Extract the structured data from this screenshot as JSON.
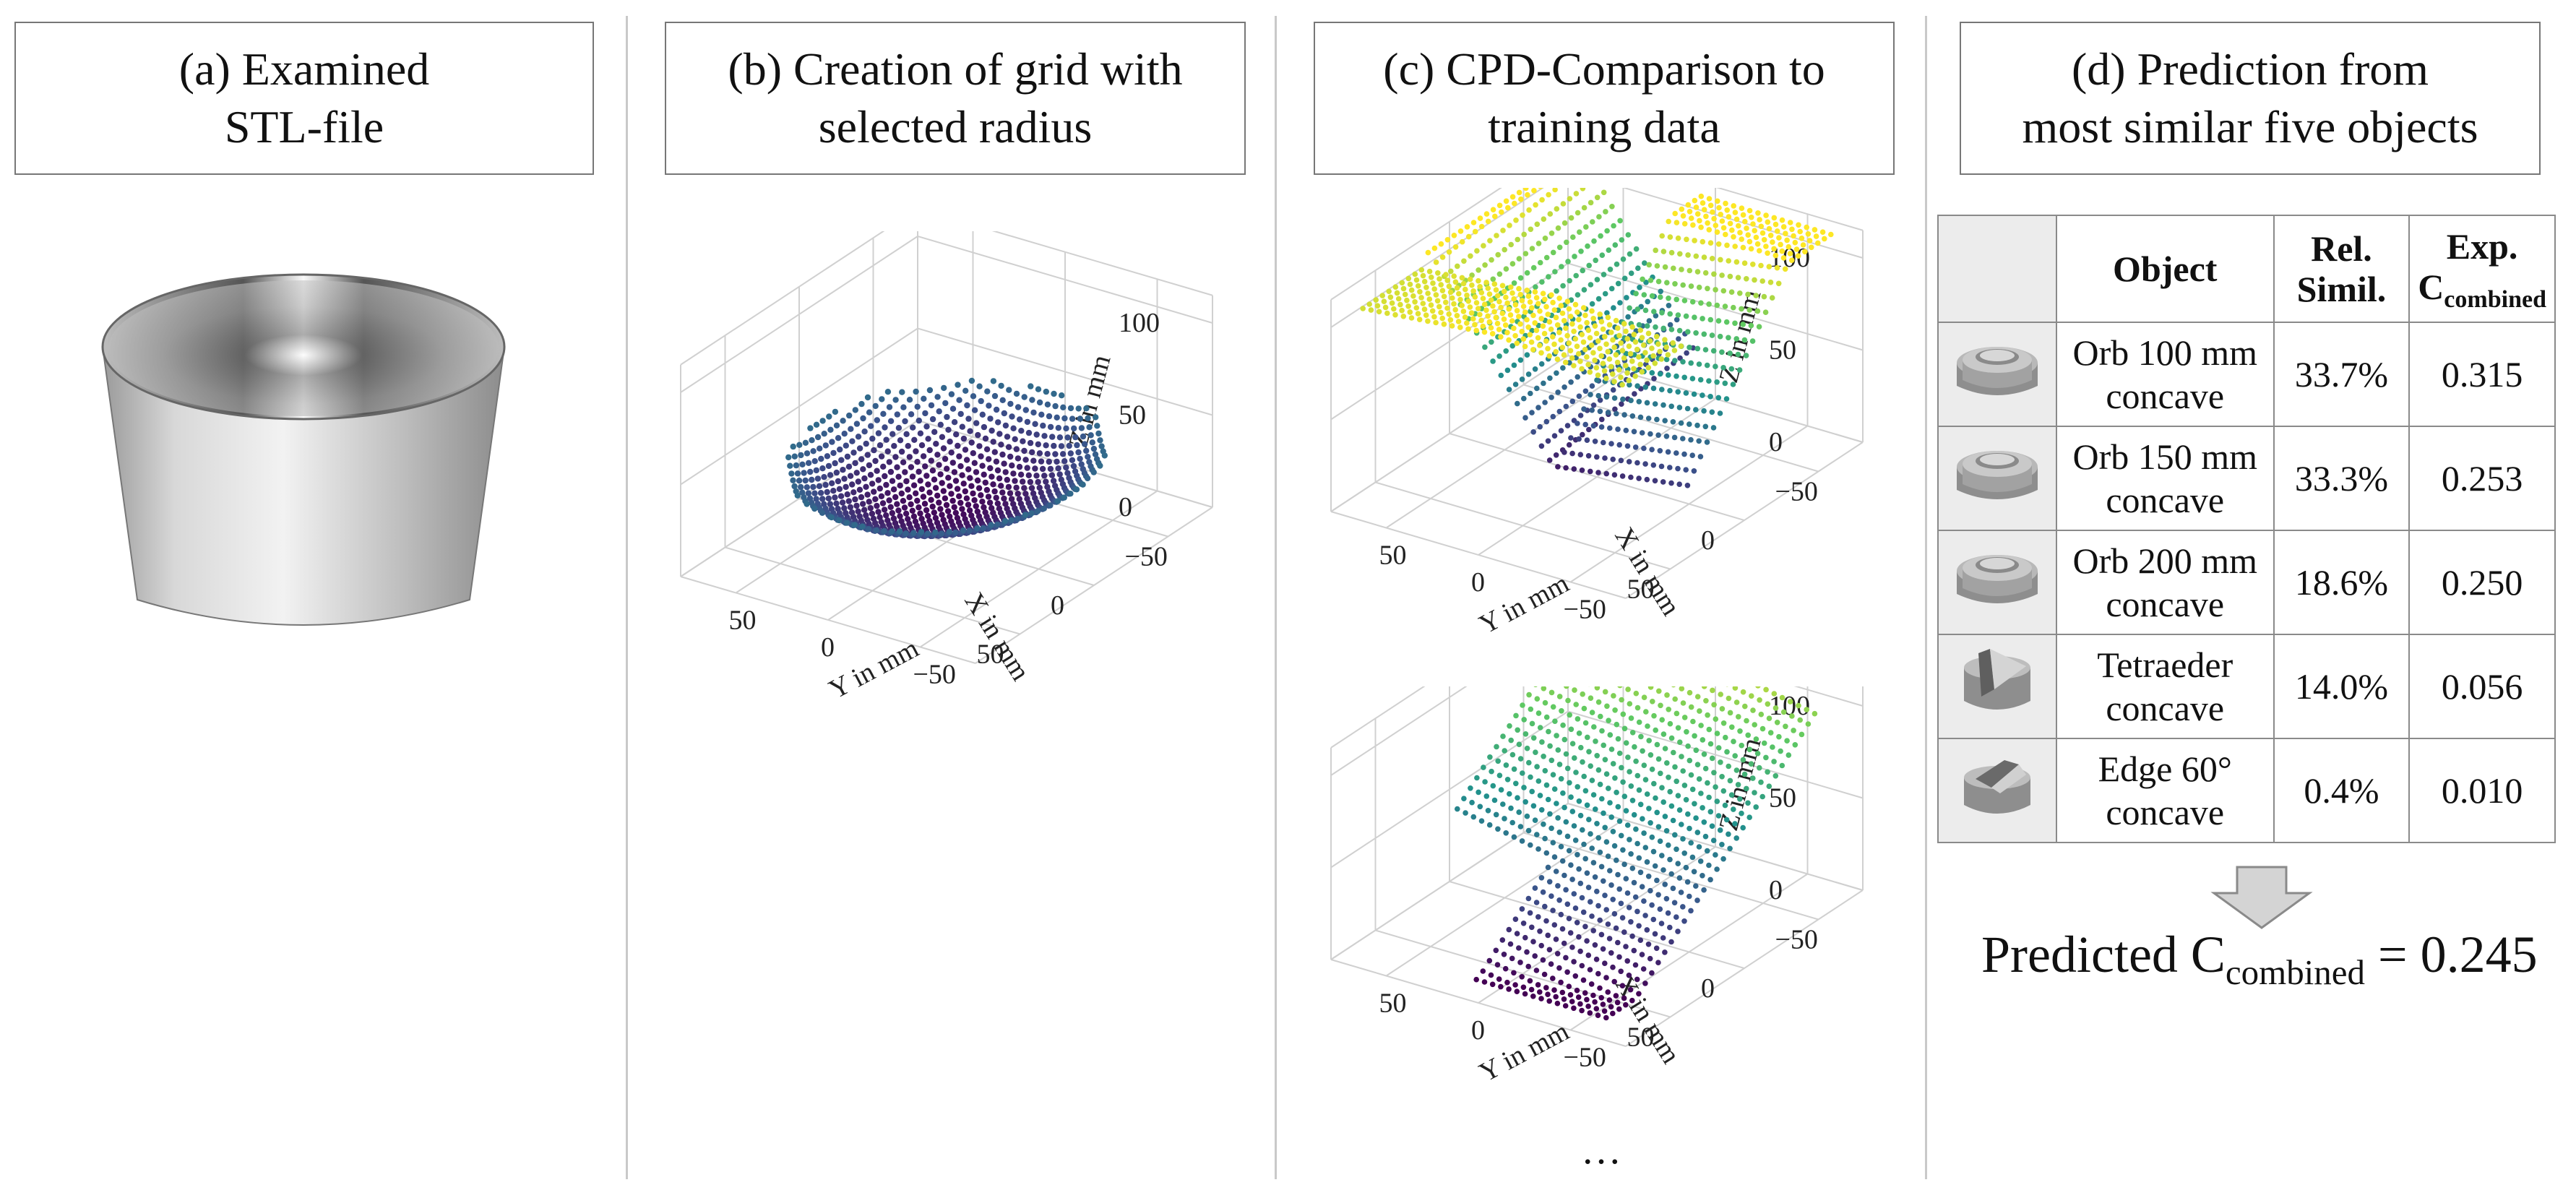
{
  "panels": {
    "a": {
      "title_line1": "(a) Examined",
      "title_line2": "STL-file"
    },
    "b": {
      "title_line1": "(b) Creation of grid with",
      "title_line2": "selected radius"
    },
    "c": {
      "title_line1": "(c) CPD-Comparison to",
      "title_line2": "training data"
    },
    "d": {
      "title_line1": "(d) Prediction from",
      "title_line2": "most similar five objects"
    }
  },
  "axes": {
    "z_label": "Z in mm",
    "x_label": "X in mm",
    "y_label": "Y in mm",
    "z_ticks": [
      "100",
      "50",
      "0"
    ],
    "x_ticks": [
      "50",
      "0",
      "−50"
    ],
    "y_ticks": [
      "50",
      "0",
      "−50"
    ]
  },
  "colormap": [
    "#440154",
    "#3b528b",
    "#21918c",
    "#5ec962",
    "#fde725"
  ],
  "table": {
    "headers": {
      "object": "Object",
      "rel_line1": "Rel.",
      "rel_line2": "Simil.",
      "exp_line1": "Exp.",
      "exp_c": "C",
      "exp_sub": "combined"
    },
    "rows": [
      {
        "object_line1": "Orb 100 mm",
        "object_line2": "concave",
        "rel": "33.7%",
        "exp": "0.315",
        "icon": "orb-icon"
      },
      {
        "object_line1": "Orb 150 mm",
        "object_line2": "concave",
        "rel": "33.3%",
        "exp": "0.253",
        "icon": "orb-icon"
      },
      {
        "object_line1": "Orb 200 mm",
        "object_line2": "concave",
        "rel": "18.6%",
        "exp": "0.250",
        "icon": "orb-icon"
      },
      {
        "object_line1": "Tetraeder",
        "object_line2": "concave",
        "rel": "14.0%",
        "exp": "0.056",
        "icon": "tetraeder-icon"
      },
      {
        "object_line1": "Edge 60°",
        "object_line2": "concave",
        "rel": "0.4%",
        "exp": "0.010",
        "icon": "edge-icon"
      }
    ]
  },
  "prediction": {
    "prefix": "Predicted C",
    "sub": "combined",
    "suffix": " = 0.245"
  },
  "ellipsis": "…"
}
